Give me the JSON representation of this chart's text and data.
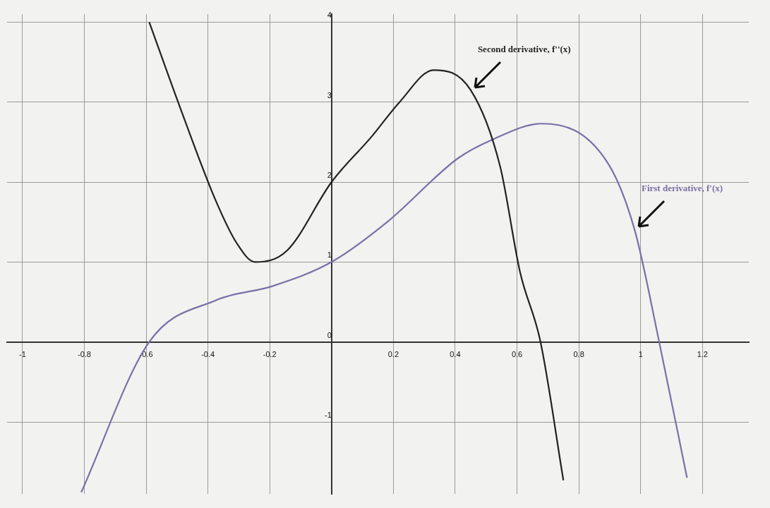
{
  "chart_data": {
    "type": "line",
    "xlim": [
      -1.05,
      1.35
    ],
    "ylim": [
      -1.9,
      4.1
    ],
    "xticks": [
      -1,
      -0.8,
      -0.6,
      -0.4,
      -0.2,
      0.2,
      0.4,
      0.6,
      0.8,
      1,
      1.2
    ],
    "yticks": [
      -1,
      0,
      1,
      2,
      3,
      4
    ],
    "grid": true,
    "marker": "none",
    "line_style": "solid",
    "series": [
      {
        "name": "Second derivative, f''(x)",
        "color": "#222222",
        "x": [
          -0.59,
          -0.49,
          -0.375,
          -0.306,
          -0.248,
          -0.145,
          0,
          0.13,
          0.22,
          0.33,
          0.45,
          0.545,
          0.61,
          0.676,
          0.75
        ],
        "values": [
          4.0,
          2.93,
          1.77,
          1.23,
          1.0,
          1.14,
          2.0,
          2.57,
          3.0,
          3.4,
          3.15,
          2.2,
          0.87,
          0,
          -1.73
        ]
      },
      {
        "name": "First derivative, f'(x)",
        "color": "#7b6fa8",
        "x": [
          -0.81,
          -0.59,
          -0.375,
          -0.19,
          0,
          0.18,
          0.41,
          0.52,
          0.68,
          0.89,
          0.98,
          1.06,
          1.15
        ],
        "values": [
          -1.88,
          0,
          0.52,
          0.7,
          1.0,
          1.5,
          2.3,
          2.53,
          2.73,
          2.26,
          1.41,
          0,
          -1.7
        ]
      }
    ]
  }
}
